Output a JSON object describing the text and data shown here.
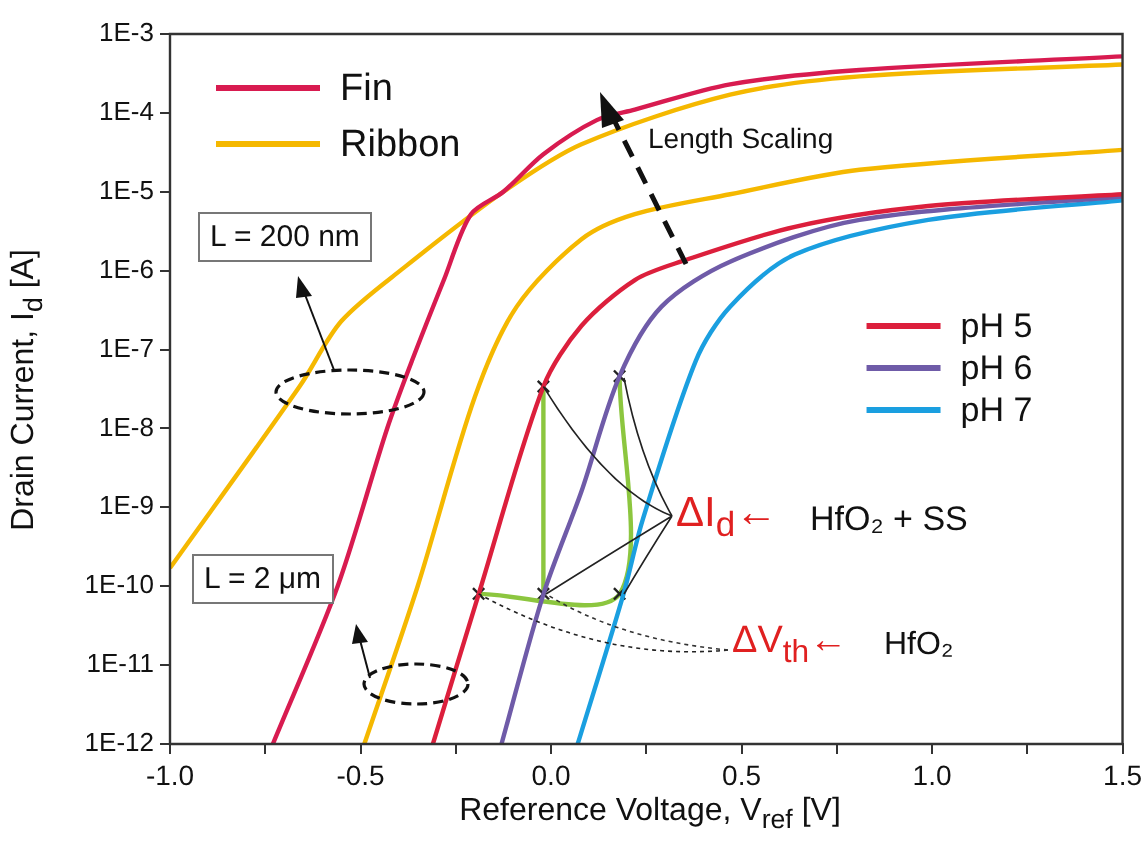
{
  "chart_data": {
    "type": "line",
    "xlabel": "Reference Voltage, V$_{ref}$ [V]",
    "ylabel": "Drain Current, I$_{d}$ [A]",
    "log": "y",
    "grid": false,
    "legend": "top left",
    "marker": "none",
    "line_style": "solid",
    "xlim": [
      -1.0,
      1.5
    ],
    "xticks": [
      {
        "value": -1.0,
        "label": "-1.0"
      },
      {
        "value": -0.75,
        "label": null
      },
      {
        "value": -0.5,
        "label": "-0.5"
      },
      {
        "value": -0.25,
        "label": null
      },
      {
        "value": 0,
        "label": "0.0"
      },
      {
        "value": 0.25,
        "label": null
      },
      {
        "value": 0.5,
        "label": "0.5"
      },
      {
        "value": 0.75,
        "label": null
      },
      {
        "value": 1.0,
        "label": "1.0"
      },
      {
        "value": 1.25,
        "label": null
      },
      {
        "value": 1.5,
        "label": "1.5"
      }
    ],
    "ylim": [
      1e-12,
      0.001
    ],
    "yticks": [
      {
        "value": 1e-12,
        "label": "1E-12"
      },
      {
        "value": 1e-11,
        "label": "1E-11"
      },
      {
        "value": 1e-10,
        "label": "1E-10"
      },
      {
        "value": 1e-09,
        "label": "1E-9"
      },
      {
        "value": 1e-08,
        "label": "1E-8"
      },
      {
        "value": 1e-07,
        "label": "1E-7"
      },
      {
        "value": 1e-06,
        "label": "1E-6"
      },
      {
        "value": 1e-05,
        "label": "1E-5"
      },
      {
        "value": 0.0001,
        "label": "1E-4"
      },
      {
        "value": 0.001,
        "label": "1E-3"
      }
    ],
    "series": [
      {
        "name": "Fin",
        "color": "#d81b50",
        "x": [
          -0.73,
          -0.56,
          -0.43,
          -0.365,
          -0.28,
          -0.21,
          -0.125,
          -0.02,
          0.12,
          0.22,
          0.47,
          0.81,
          1.5
        ],
        "values": [
          1e-12,
          1e-10,
          1e-08,
          7.2e-08,
          7.9e-07,
          5.2e-06,
          1e-05,
          3e-05,
          8.1e-05,
          0.00011,
          0.00023,
          0.00035,
          0.00052
        ]
      },
      {
        "name": "Ribbon",
        "color": "#f5b800",
        "x": [
          -1.0,
          -0.66,
          -0.55,
          -0.385,
          -0.125,
          0.08,
          0.47,
          0.81,
          1.5
        ],
        "values": [
          1.7e-10,
          3.4e-08,
          2.3e-07,
          1.1e-06,
          1e-05,
          4e-05,
          0.00017,
          0.00029,
          0.00041
        ]
      },
      {
        "name": "pH 5",
        "color": "#dc1f3c",
        "x": [
          -0.31,
          -0.19,
          -0.02,
          0.08,
          0.22,
          0.34,
          0.64,
          0.99,
          1.5
        ],
        "values": [
          1e-12,
          7.9e-11,
          3.4e-08,
          2e-07,
          7.6e-07,
          1.3e-06,
          3.6e-06,
          6.6e-06,
          9.3e-06
        ]
      },
      {
        "name": "pH 6",
        "color": "#6f5ba8",
        "x": [
          -0.13,
          -0.02,
          0.08,
          0.18,
          0.29,
          0.47,
          0.81,
          1.5
        ],
        "values": [
          1e-12,
          7.9e-11,
          1.6e-09,
          4.6e-08,
          3.5e-07,
          1.3e-06,
          4.4e-06,
          8.7e-06
        ]
      },
      {
        "name": "pH 7",
        "color": "#1a9fe0",
        "x": [
          0.07,
          0.19,
          0.24,
          0.38,
          0.47,
          0.64,
          0.99,
          1.5
        ],
        "values": [
          1e-12,
          7.9e-11,
          6.8e-10,
          7.2e-08,
          3.5e-07,
          1.6e-06,
          4.4e-06,
          7.8e-06
        ]
      },
      {
        "color": "#f5b800",
        "x": [
          -0.49,
          -0.35,
          -0.2,
          -0.09,
          0.08,
          0.22,
          0.47,
          0.81,
          1.5
        ],
        "values": [
          1e-12,
          1e-10,
          2.5e-08,
          3.5e-07,
          2.5e-06,
          5.2e-06,
          9.3e-06,
          1.9e-05,
          3.4e-05
        ]
      },
      {
        "color": "#8cc63f",
        "marker": "cross",
        "x": [
          -0.19,
          0.18,
          0.18
        ],
        "values": [
          8e-11,
          8e-11,
          4.6e-08
        ]
      },
      {
        "color": "#8cc63f",
        "marker": "cross",
        "x": [
          -0.02,
          -0.02
        ],
        "values": [
          8e-11,
          3.4e-08
        ]
      }
    ],
    "annotations": [
      "L = 200 nm",
      "L = 2 μm",
      "Length Scaling",
      {
        "text": "ΔI$_{d}$←",
        "x": -0.02,
        "y": 3.4e-08
      },
      "HfO₂ + SS",
      {
        "text": "ΔV$_{th}$←",
        "x": -0.19,
        "y": 8e-11
      },
      "HfO₂"
    ]
  }
}
